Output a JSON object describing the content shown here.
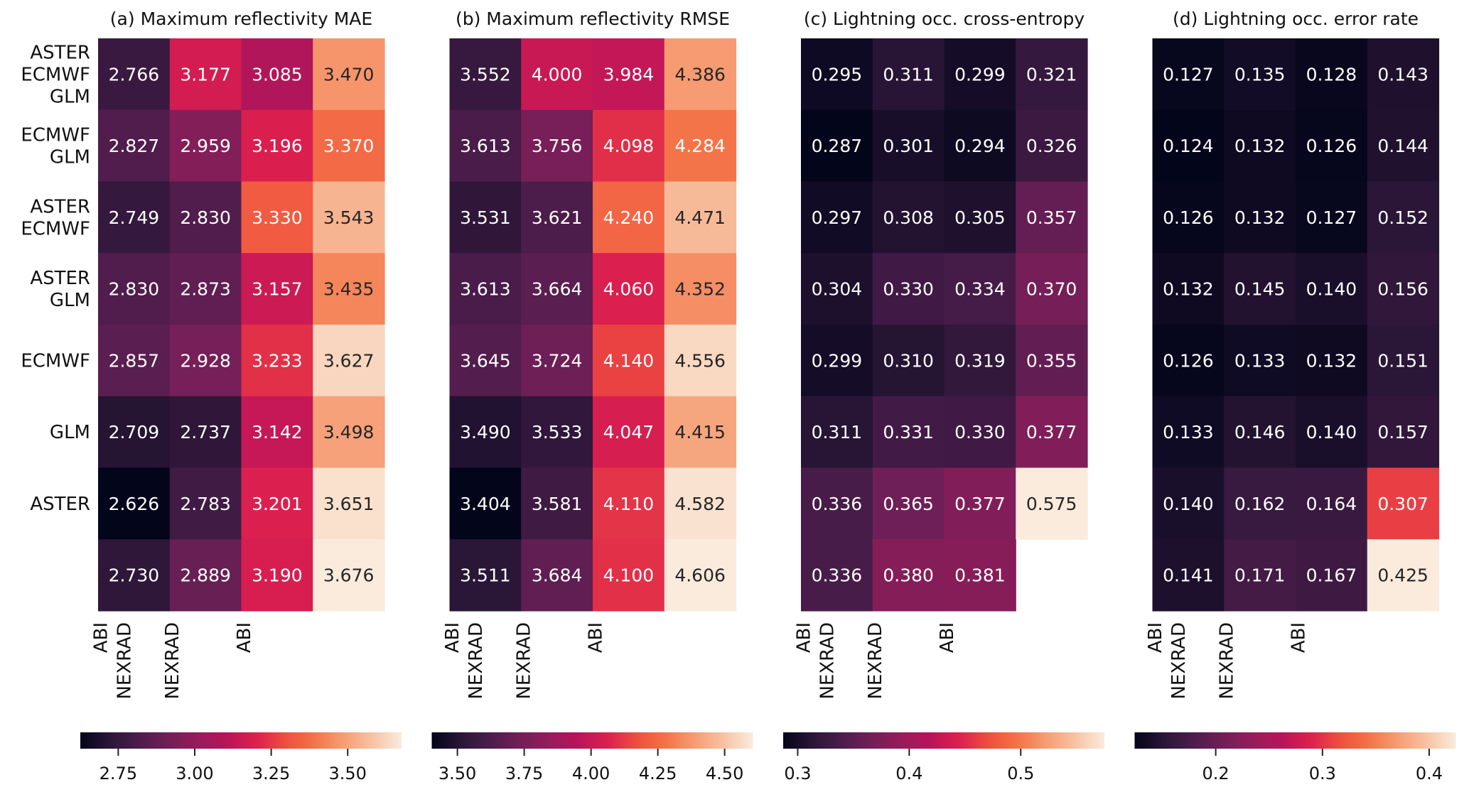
{
  "chart_data": [
    {
      "type": "heatmap",
      "title": "(a) Maximum reflectivity MAE",
      "row_labels": [
        [
          "ASTER",
          "ECMWF",
          "GLM"
        ],
        [
          "ECMWF",
          "GLM"
        ],
        [
          "ASTER",
          "ECMWF"
        ],
        [
          "ASTER",
          "GLM"
        ],
        [
          "ECMWF"
        ],
        [
          "GLM"
        ],
        [
          "ASTER"
        ],
        []
      ],
      "col_labels": [
        [
          "ABI",
          "NEXRAD"
        ],
        [
          "NEXRAD"
        ],
        [
          "ABI"
        ],
        []
      ],
      "values": [
        [
          2.766,
          3.177,
          3.085,
          3.47
        ],
        [
          2.827,
          2.959,
          3.196,
          3.37
        ],
        [
          2.749,
          2.83,
          3.33,
          3.543
        ],
        [
          2.83,
          2.873,
          3.157,
          3.435
        ],
        [
          2.857,
          2.928,
          3.233,
          3.627
        ],
        [
          2.709,
          2.737,
          3.142,
          3.498
        ],
        [
          2.626,
          2.783,
          3.201,
          3.651
        ],
        [
          2.73,
          2.889,
          3.19,
          3.676
        ]
      ],
      "colorbar": {
        "range": [
          2.626,
          3.676
        ],
        "ticks": [
          2.75,
          3.0,
          3.25,
          3.5
        ],
        "tick_labels": [
          "2.75",
          "3.00",
          "3.25",
          "3.50"
        ]
      },
      "show_row_labels": true
    },
    {
      "type": "heatmap",
      "title": "(b) Maximum reflectivity RMSE",
      "col_labels": [
        [
          "ABI",
          "NEXRAD"
        ],
        [
          "NEXRAD"
        ],
        [
          "ABI"
        ],
        []
      ],
      "values": [
        [
          3.552,
          4.0,
          3.984,
          4.386
        ],
        [
          3.613,
          3.756,
          4.098,
          4.284
        ],
        [
          3.531,
          3.621,
          4.24,
          4.471
        ],
        [
          3.613,
          3.664,
          4.06,
          4.352
        ],
        [
          3.645,
          3.724,
          4.14,
          4.556
        ],
        [
          3.49,
          3.533,
          4.047,
          4.415
        ],
        [
          3.404,
          3.581,
          4.11,
          4.582
        ],
        [
          3.511,
          3.684,
          4.1,
          4.606
        ]
      ],
      "colorbar": {
        "range": [
          3.404,
          4.606
        ],
        "ticks": [
          3.5,
          3.75,
          4.0,
          4.25,
          4.5
        ],
        "tick_labels": [
          "3.50",
          "3.75",
          "4.00",
          "4.25",
          "4.50"
        ]
      },
      "show_row_labels": false
    },
    {
      "type": "heatmap",
      "title": "(c) Lightning occ. cross-entropy",
      "col_labels": [
        [
          "ABI",
          "NEXRAD"
        ],
        [
          "NEXRAD"
        ],
        [
          "ABI"
        ],
        []
      ],
      "values": [
        [
          0.295,
          0.311,
          0.299,
          0.321
        ],
        [
          0.287,
          0.301,
          0.294,
          0.326
        ],
        [
          0.297,
          0.308,
          0.305,
          0.357
        ],
        [
          0.304,
          0.33,
          0.334,
          0.37
        ],
        [
          0.299,
          0.31,
          0.319,
          0.355
        ],
        [
          0.311,
          0.331,
          0.33,
          0.377
        ],
        [
          0.336,
          0.365,
          0.377,
          0.575
        ],
        [
          0.336,
          0.38,
          0.381,
          null
        ]
      ],
      "colorbar": {
        "range": [
          0.287,
          0.575
        ],
        "ticks": [
          0.3,
          0.4,
          0.5
        ],
        "tick_labels": [
          "0.3",
          "0.4",
          "0.5"
        ]
      },
      "show_row_labels": false
    },
    {
      "type": "heatmap",
      "title": "(d) Lightning occ. error rate",
      "col_labels": [
        [
          "ABI",
          "NEXRAD"
        ],
        [
          "NEXRAD"
        ],
        [
          "ABI"
        ],
        []
      ],
      "values": [
        [
          0.127,
          0.135,
          0.128,
          0.143
        ],
        [
          0.124,
          0.132,
          0.126,
          0.144
        ],
        [
          0.126,
          0.132,
          0.127,
          0.152
        ],
        [
          0.132,
          0.145,
          0.14,
          0.156
        ],
        [
          0.126,
          0.133,
          0.132,
          0.151
        ],
        [
          0.133,
          0.146,
          0.14,
          0.157
        ],
        [
          0.14,
          0.162,
          0.164,
          0.307
        ],
        [
          0.141,
          0.171,
          0.167,
          0.425
        ]
      ],
      "colorbar": {
        "range": [
          0.124,
          0.425
        ],
        "ticks": [
          0.2,
          0.3,
          0.4
        ],
        "tick_labels": [
          "0.2",
          "0.3",
          "0.4"
        ]
      },
      "show_row_labels": false
    }
  ],
  "colormap": {
    "name": "rocket",
    "stops": [
      "#03051a",
      "#2b1637",
      "#4c1d4b",
      "#701f57",
      "#961c5b",
      "#b8145a",
      "#db1f4f",
      "#ef4d3f",
      "#f47248",
      "#f69c73",
      "#f7c3a3",
      "#faebdd"
    ]
  }
}
